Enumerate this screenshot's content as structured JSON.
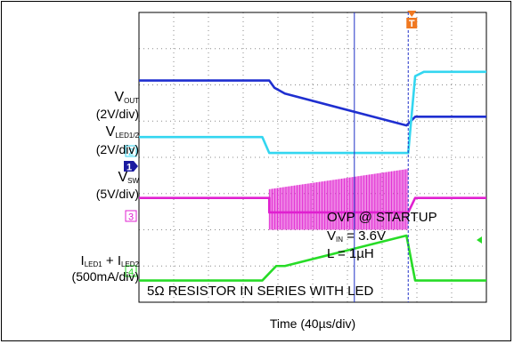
{
  "chart_data": {
    "type": "line",
    "xlabel": "Time (40µs/div)",
    "grid": true,
    "divisions": {
      "x": 10,
      "y": 8
    },
    "trigger_marker": "T",
    "cursor_marker": "arrow-left",
    "channels": [
      {
        "id": "vout",
        "marker": "",
        "color": "#1f2fd0",
        "label": {
          "main": "V",
          "sub": "OUT"
        },
        "scale": "(2V/div)",
        "points": [
          [
            0,
            2.35
          ],
          [
            3.75,
            2.35
          ],
          [
            3.9,
            2.6
          ],
          [
            4.2,
            2.8
          ],
          [
            7.7,
            3.9
          ],
          [
            7.95,
            3.6
          ],
          [
            10,
            3.6
          ]
        ]
      },
      {
        "id": "vled",
        "marker": "2",
        "color": "#33d6f0",
        "label": {
          "main": "V",
          "sub": "LED1/2"
        },
        "scale": "(2V/div)",
        "points": [
          [
            0,
            4.3
          ],
          [
            3.55,
            4.3
          ],
          [
            3.75,
            4.85
          ],
          [
            7.75,
            4.85
          ],
          [
            7.95,
            2.2
          ],
          [
            8.2,
            2.05
          ],
          [
            10,
            2.05
          ]
        ]
      },
      {
        "id": "vsw",
        "marker": "3",
        "color": "#e020d0",
        "label": {
          "main": "V",
          "sub": "SW"
        },
        "scale": "(5V/div)",
        "points": [
          [
            0,
            6.4
          ],
          [
            3.75,
            6.4
          ],
          [
            3.75,
            6.9
          ],
          [
            7.75,
            6.9
          ],
          [
            7.95,
            6.4
          ],
          [
            10,
            6.4
          ]
        ],
        "burst": {
          "start": 3.75,
          "end": 7.75,
          "top_start": 6.1,
          "top_end": 5.4,
          "bottom": 7.5
        }
      },
      {
        "id": "iled",
        "marker": "4",
        "color": "#27dc27",
        "label": {
          "main": "I",
          "sub": "LED1",
          "main2": " + I",
          "sub2": "LED2"
        },
        "scale": "(500mA/div)",
        "points": [
          [
            0,
            9.25
          ],
          [
            3.55,
            9.25
          ],
          [
            3.95,
            8.75
          ],
          [
            4.2,
            8.75
          ],
          [
            7.7,
            7.7
          ],
          [
            7.95,
            9.25
          ],
          [
            10,
            9.25
          ]
        ]
      }
    ],
    "ground_marker": "1",
    "cursors": [
      {
        "x": 6.2,
        "color": "#2030c8"
      },
      {
        "x": 7.75,
        "color": "#2030c8",
        "dashed": true
      }
    ],
    "annotations": {
      "title": "OVP @ STARTUP",
      "vin": {
        "main": "V",
        "sub": "IN",
        "value": " = 3.6V"
      },
      "inductor": "L = 1µH",
      "note": "5Ω RESISTOR IN SERIES WITH LED"
    }
  }
}
